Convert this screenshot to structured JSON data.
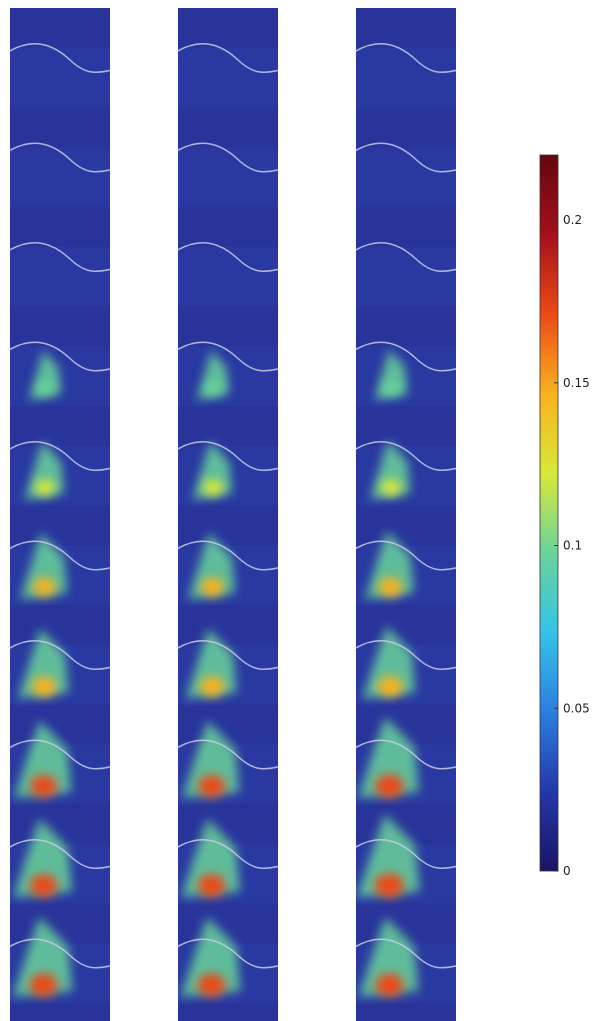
{
  "figure": {
    "colormap": [
      "#1a1464",
      "#2437a8",
      "#2b7fe0",
      "#35c3e8",
      "#69d49a",
      "#d8e83a",
      "#f9b21e",
      "#ec4a16",
      "#a4101c",
      "#66060b"
    ],
    "background_color": "#28349a",
    "divider_color": "#c8cce8",
    "columns": [
      {
        "frames": [
          {
            "intensity": 0.0
          },
          {
            "intensity": 0.0
          },
          {
            "intensity": 0.0
          },
          {
            "intensity": 0.25
          },
          {
            "intensity": 0.4
          },
          {
            "intensity": 0.55
          },
          {
            "intensity": 0.62
          },
          {
            "intensity": 0.75
          },
          {
            "intensity": 0.78
          },
          {
            "intensity": 0.8
          }
        ]
      },
      {
        "frames": [
          {
            "intensity": 0.0
          },
          {
            "intensity": 0.0
          },
          {
            "intensity": 0.0
          },
          {
            "intensity": 0.25
          },
          {
            "intensity": 0.4
          },
          {
            "intensity": 0.55
          },
          {
            "intensity": 0.62
          },
          {
            "intensity": 0.75
          },
          {
            "intensity": 0.78
          },
          {
            "intensity": 0.8
          }
        ]
      },
      {
        "frames": [
          {
            "intensity": 0.0
          },
          {
            "intensity": 0.0
          },
          {
            "intensity": 0.0
          },
          {
            "intensity": 0.27
          },
          {
            "intensity": 0.42
          },
          {
            "intensity": 0.58
          },
          {
            "intensity": 0.66
          },
          {
            "intensity": 0.82
          },
          {
            "intensity": 0.86
          },
          {
            "intensity": 0.8
          }
        ]
      }
    ]
  },
  "colorbar": {
    "range": [
      0,
      0.22
    ],
    "ticks": [
      {
        "value": 0,
        "label": "0"
      },
      {
        "value": 0.05,
        "label": "0.05"
      },
      {
        "value": 0.1,
        "label": "0.1"
      },
      {
        "value": 0.15,
        "label": "0.15"
      },
      {
        "value": 0.2,
        "label": "0.2"
      }
    ]
  }
}
